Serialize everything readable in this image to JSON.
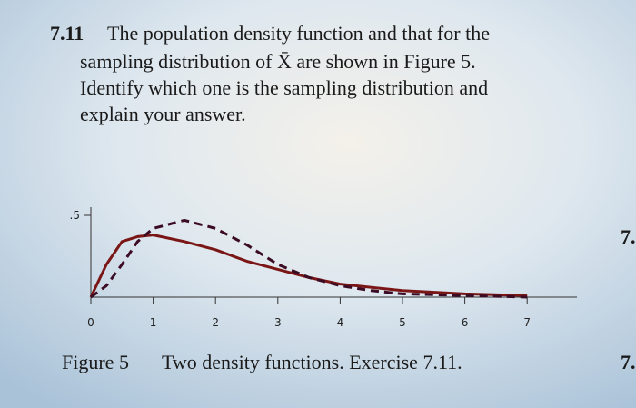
{
  "exercise": {
    "number": "7.11",
    "lines": [
      "The population density function and that for the",
      "sampling distribution of X̄ are shown in Figure 5.",
      "Identify which one is the sampling distribution and",
      "explain your answer."
    ]
  },
  "margin_marks": [
    "7.",
    "7."
  ],
  "chart_data": {
    "type": "line",
    "x": [
      0,
      0.25,
      0.5,
      0.75,
      1,
      1.5,
      2,
      2.5,
      3,
      3.5,
      4,
      4.5,
      5,
      6,
      7
    ],
    "series": [
      {
        "color": "#7a1616",
        "style": "solid",
        "values": [
          0,
          0.2,
          0.34,
          0.37,
          0.38,
          0.34,
          0.29,
          0.22,
          0.17,
          0.12,
          0.08,
          0.06,
          0.04,
          0.02,
          0.01
        ]
      },
      {
        "color": "#3b0b24",
        "style": "dashed",
        "values": [
          0,
          0.07,
          0.2,
          0.34,
          0.42,
          0.47,
          0.42,
          0.32,
          0.2,
          0.12,
          0.07,
          0.04,
          0.02,
          0.01,
          0
        ]
      }
    ],
    "xlim": [
      0,
      7.8
    ],
    "ylim": [
      0,
      0.55
    ],
    "xticks": [
      0,
      1,
      2,
      3,
      4,
      5,
      6,
      7
    ],
    "yticks": [
      {
        "value": 0.5,
        "label": ".5"
      }
    ]
  },
  "caption": {
    "label": "Figure 5",
    "text": "Two density functions. Exercise 7.11."
  }
}
